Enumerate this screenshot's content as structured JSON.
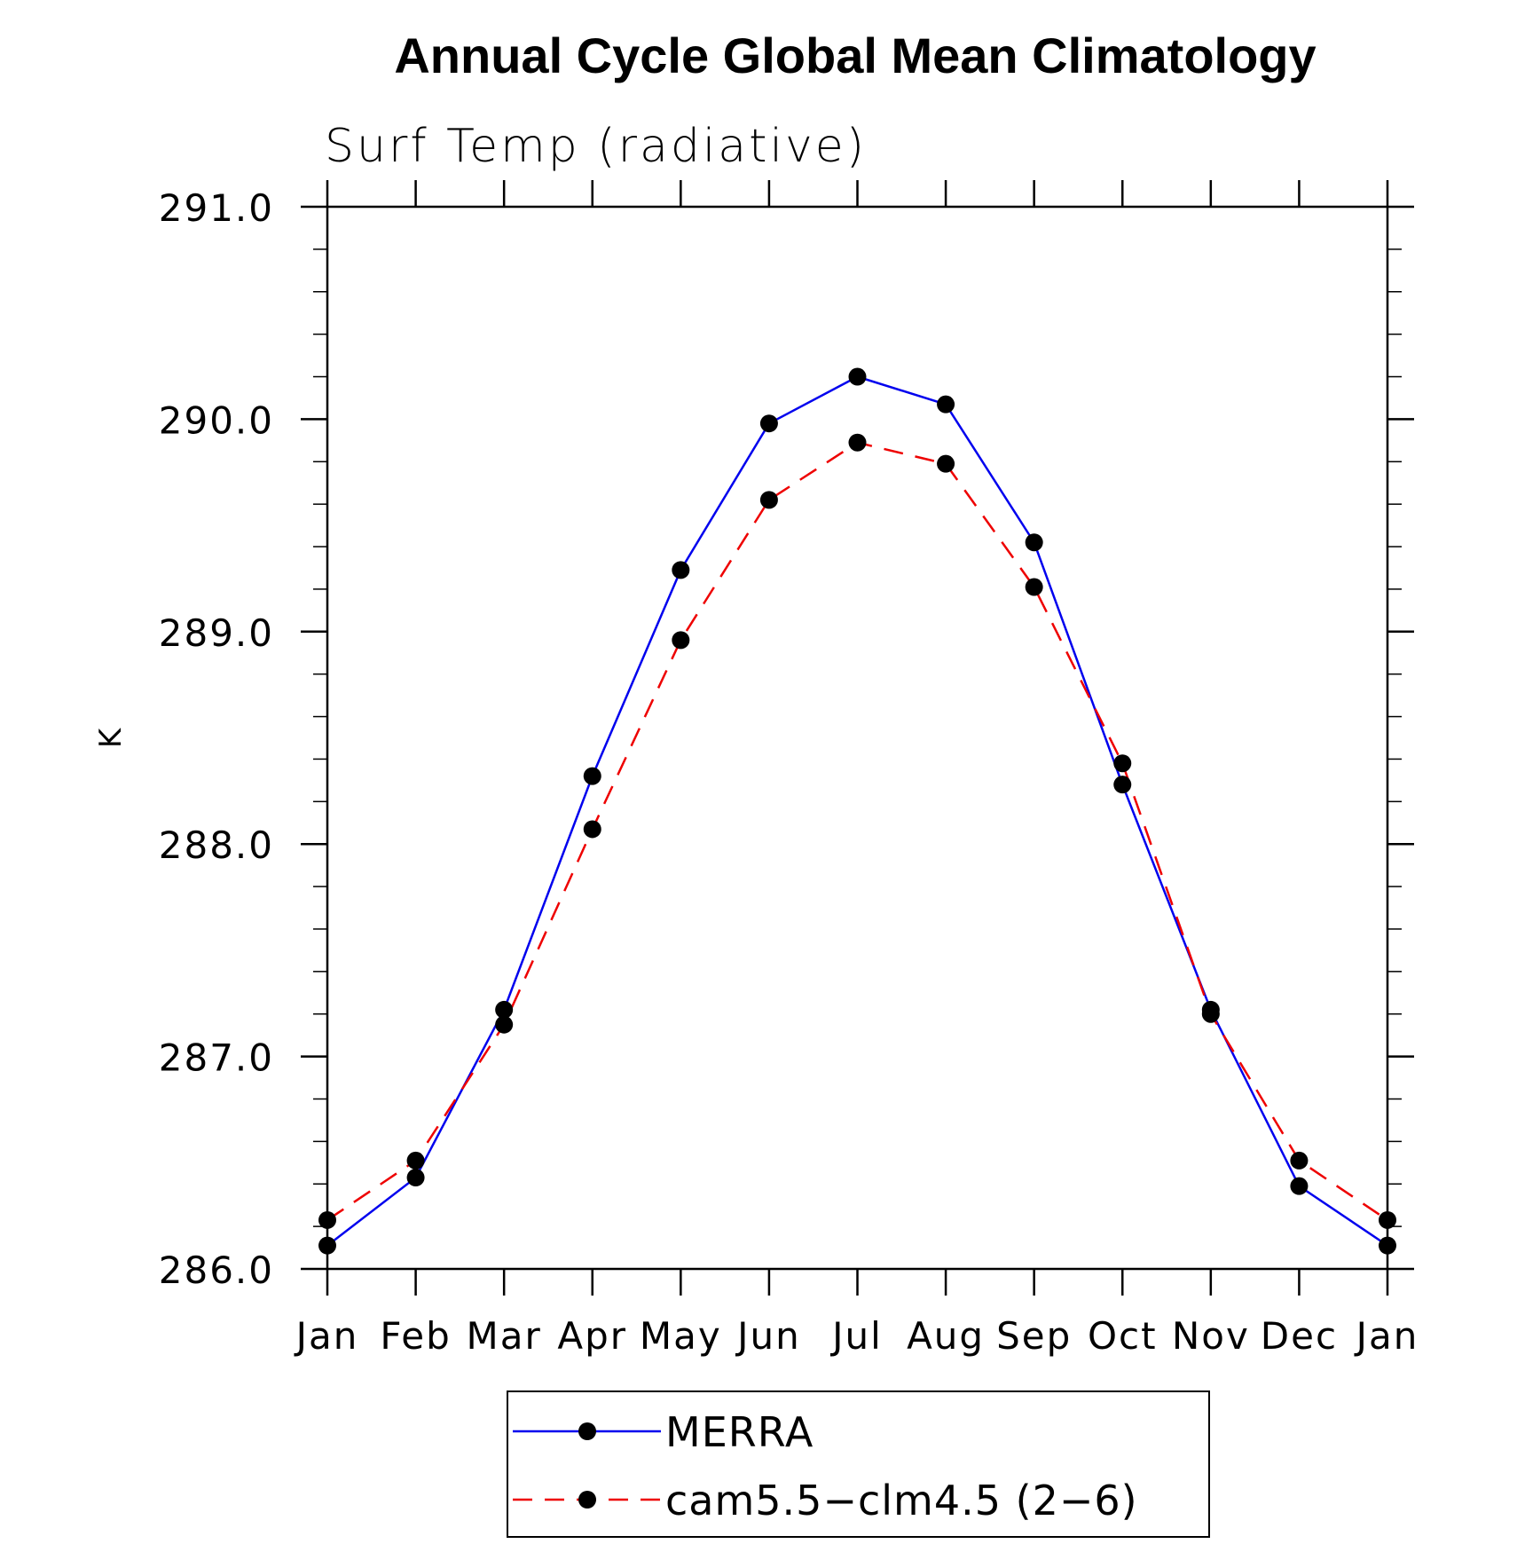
{
  "chart_data": {
    "type": "line",
    "title": "Annual Cycle Global Mean Climatology",
    "subtitle": "Surf Temp (radiative)",
    "xlabel": "",
    "ylabel": "K",
    "categories": [
      "Jan",
      "Feb",
      "Mar",
      "Apr",
      "May",
      "Jun",
      "Jul",
      "Aug",
      "Sep",
      "Oct",
      "Nov",
      "Dec",
      "Jan"
    ],
    "ylim": [
      286.0,
      291.0
    ],
    "yticks": [
      "286.0",
      "287.0",
      "288.0",
      "289.0",
      "290.0",
      "291.0"
    ],
    "grid": false,
    "legend_position": "bottom",
    "series": [
      {
        "name": "MERRA",
        "color": "#0000ee",
        "line_style": "solid",
        "marker": "filled-circle",
        "values": [
          286.11,
          286.43,
          287.22,
          288.32,
          289.29,
          289.98,
          290.2,
          290.07,
          289.42,
          288.28,
          287.22,
          286.39,
          286.11
        ]
      },
      {
        "name": "cam5.5−clm4.5 (2−6)",
        "color": "#ee0000",
        "line_style": "dashed",
        "marker": "filled-circle",
        "values": [
          286.23,
          286.51,
          287.15,
          288.07,
          288.96,
          289.62,
          289.89,
          289.79,
          289.21,
          288.38,
          287.2,
          286.51,
          286.23
        ]
      }
    ]
  }
}
